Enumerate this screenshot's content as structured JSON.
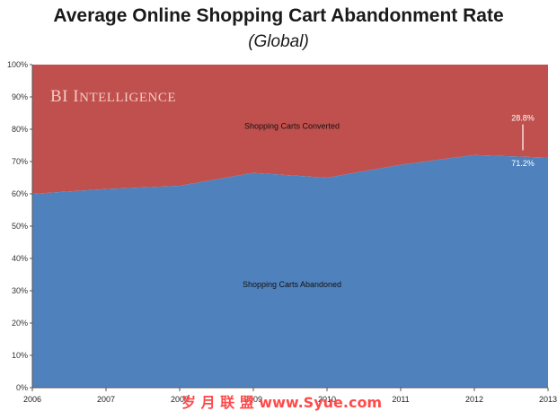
{
  "chart_data": {
    "type": "area",
    "title": "Average Online Shopping Cart Abandonment Rate",
    "subtitle": "(Global)",
    "x": [
      "2006",
      "2007",
      "2008",
      "2009",
      "2010",
      "2011",
      "2012",
      "2013"
    ],
    "series": [
      {
        "name": "Shopping Carts Abandoned",
        "values": [
          60,
          61.5,
          62.5,
          66.5,
          65,
          69,
          72,
          71.2
        ],
        "color": "#4f81bd"
      },
      {
        "name": "Shopping Carts Converted",
        "values": [
          40,
          38.5,
          37.5,
          33.5,
          35,
          31,
          28,
          28.8
        ],
        "color": "#c0504d"
      }
    ],
    "stacked": true,
    "ylim": [
      0,
      100
    ],
    "yticks": [
      "0%",
      "10%",
      "20%",
      "30%",
      "40%",
      "50%",
      "60%",
      "70%",
      "80%",
      "90%",
      "100%"
    ],
    "annotations": {
      "converted_last": "28.8%",
      "abandoned_last": "71.2%"
    },
    "watermark": "BI Intelligence",
    "grid": false,
    "legend": "none"
  },
  "footer_watermark": "岁 月 联 盟   www.Syue.com"
}
